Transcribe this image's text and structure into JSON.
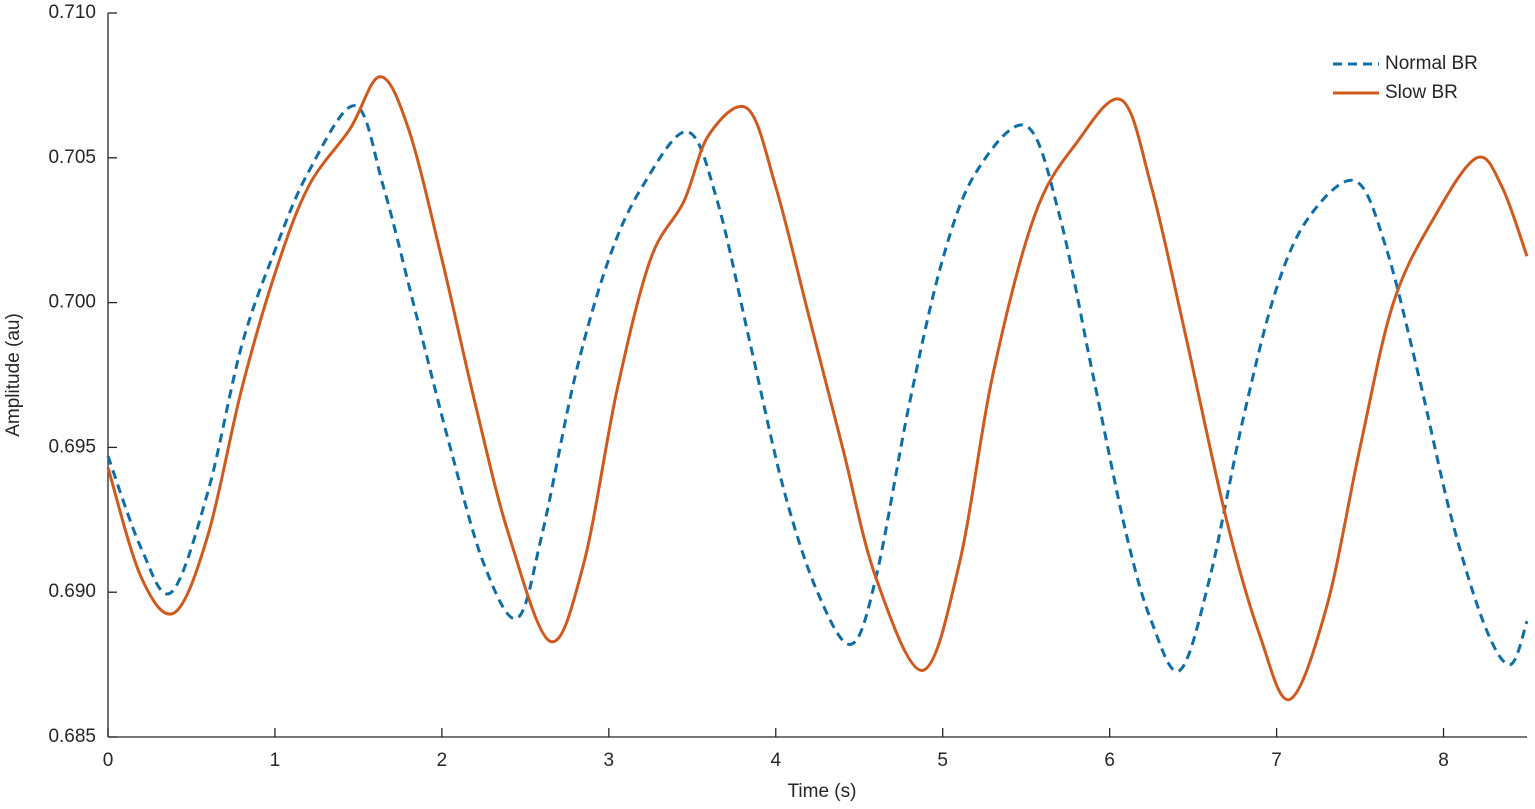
{
  "chart_data": {
    "type": "line",
    "x_label": "Time (s)",
    "y_label": "Amplitude (au)",
    "xlim": [
      0,
      8.5
    ],
    "xticks": [
      0,
      1,
      2,
      3,
      4,
      5,
      6,
      7,
      8
    ],
    "ylim": [
      0.685,
      0.71
    ],
    "yticks": [
      {
        "value": 0.685,
        "label": "0.685"
      },
      {
        "value": 0.69,
        "label": "0.690"
      },
      0.695,
      {
        "value": 0.7,
        "label": "0.700"
      },
      0.705,
      {
        "value": 0.71,
        "label": "0.710"
      }
    ],
    "legend": "top-right",
    "series": [
      {
        "name": "Normal BR",
        "color": "#0e6ea8",
        "dashed": true,
        "x": [
          0,
          0.2,
          0.38,
          0.6,
          0.8,
          1.0,
          1.2,
          1.48,
          1.65,
          1.85,
          2.05,
          2.25,
          2.45,
          2.6,
          2.8,
          3.0,
          3.2,
          3.47,
          3.65,
          3.85,
          4.05,
          4.25,
          4.45,
          4.6,
          4.8,
          5.0,
          5.2,
          5.5,
          5.7,
          5.9,
          6.1,
          6.25,
          6.42,
          6.6,
          6.8,
          7.0,
          7.2,
          7.47,
          7.65,
          7.85,
          8.05,
          8.25,
          8.4,
          8.5
        ],
        "values": [
          0.6947,
          0.6915,
          0.69,
          0.6935,
          0.6985,
          0.7018,
          0.7045,
          0.7068,
          0.704,
          0.6995,
          0.695,
          0.691,
          0.6891,
          0.692,
          0.6975,
          0.7015,
          0.704,
          0.7059,
          0.7035,
          0.6985,
          0.6935,
          0.69,
          0.6882,
          0.6905,
          0.6965,
          0.7015,
          0.7045,
          0.7061,
          0.703,
          0.6975,
          0.692,
          0.689,
          0.6873,
          0.6905,
          0.696,
          0.7005,
          0.703,
          0.7042,
          0.702,
          0.6975,
          0.6925,
          0.6888,
          0.6875,
          0.689
        ]
      },
      {
        "name": "Slow BR",
        "color": "#d05a1e",
        "dashed": false,
        "x": [
          0,
          0.2,
          0.4,
          0.6,
          0.8,
          1.0,
          1.2,
          1.45,
          1.63,
          1.8,
          2.0,
          2.2,
          2.4,
          2.65,
          2.85,
          3.05,
          3.25,
          3.45,
          3.6,
          3.83,
          4.0,
          4.2,
          4.4,
          4.6,
          4.88,
          5.1,
          5.3,
          5.55,
          5.8,
          6.07,
          6.25,
          6.45,
          6.7,
          6.9,
          7.08,
          7.3,
          7.5,
          7.7,
          7.95,
          8.2,
          8.35,
          8.5
        ],
        "values": [
          0.6943,
          0.6905,
          0.6893,
          0.692,
          0.697,
          0.701,
          0.704,
          0.706,
          0.7078,
          0.706,
          0.7015,
          0.6965,
          0.692,
          0.6883,
          0.691,
          0.697,
          0.7015,
          0.7035,
          0.7058,
          0.7067,
          0.704,
          0.6995,
          0.695,
          0.6905,
          0.6873,
          0.691,
          0.6975,
          0.703,
          0.7055,
          0.707,
          0.704,
          0.699,
          0.6925,
          0.6885,
          0.6863,
          0.6895,
          0.695,
          0.7,
          0.703,
          0.705,
          0.704,
          0.7016
        ]
      }
    ]
  }
}
